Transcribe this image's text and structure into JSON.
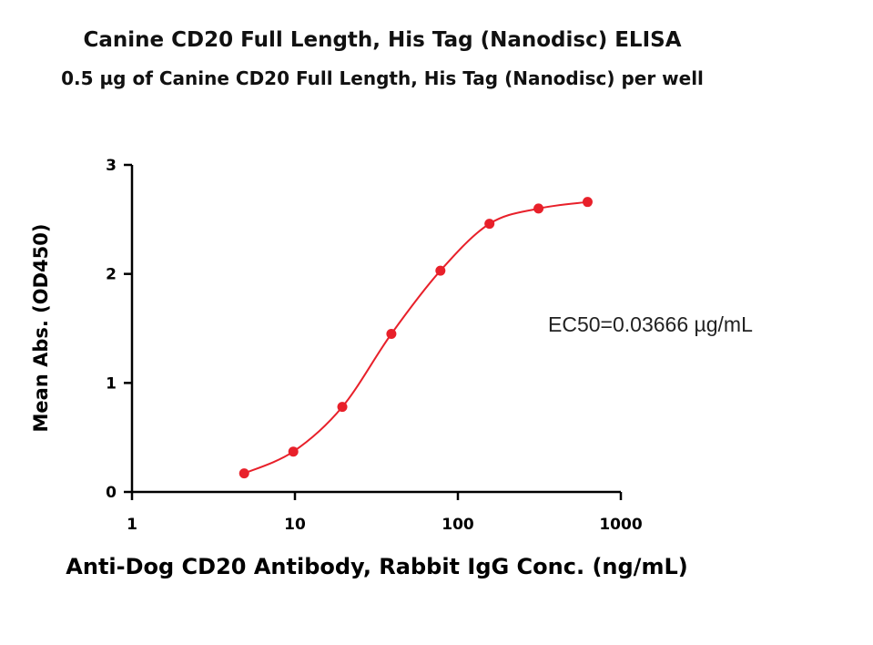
{
  "chart_data": {
    "type": "scatter",
    "title": "Canine CD20 Full Length, His Tag (Nanodisc) ELISA",
    "subtitle": "0.5 µg of Canine CD20 Full Length, His Tag (Nanodisc) per well",
    "xlabel": "Anti-Dog CD20 Antibody, Rabbit IgG Conc. (ng/mL)",
    "ylabel": "Mean Abs. (OD450)",
    "xscale": "log",
    "xlim": [
      1,
      1000
    ],
    "ylim": [
      0,
      3
    ],
    "xticks": [
      1,
      10,
      100,
      1000
    ],
    "xtick_labels": [
      "1",
      "10",
      "100",
      "1000"
    ],
    "yticks": [
      0,
      1,
      2,
      3
    ],
    "ytick_labels": [
      "0",
      "1",
      "2",
      "3"
    ],
    "grid": false,
    "series": [
      {
        "name": "Anti-Dog CD20 Antibody, Rabbit IgG",
        "color": "#e8202a",
        "x": [
          4.88,
          9.77,
          19.53,
          39.06,
          78.13,
          156.25,
          312.5,
          625
        ],
        "y": [
          0.17,
          0.37,
          0.78,
          1.45,
          2.03,
          2.46,
          2.6,
          2.66
        ],
        "fit": "4PL sigmoid"
      }
    ],
    "annotations": [
      "EC50=0.03666 µg/mL"
    ]
  }
}
